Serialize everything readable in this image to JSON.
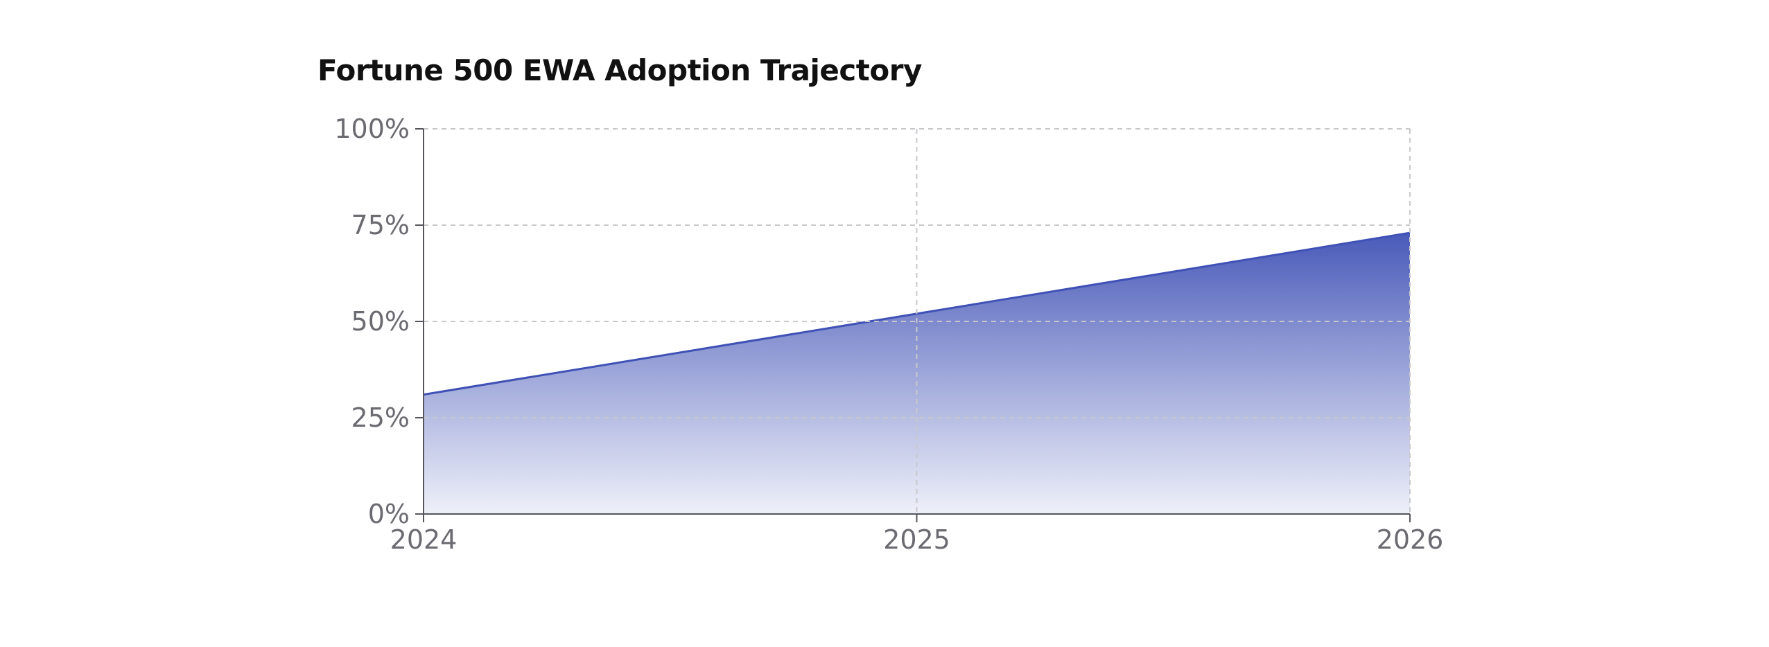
{
  "chart_data": {
    "type": "area",
    "title": "Fortune 500 EWA Adoption Trajectory",
    "xlabel": "",
    "ylabel": "",
    "x": [
      "2024",
      "2025",
      "2026"
    ],
    "series": [
      {
        "values": [
          31,
          52,
          73
        ]
      }
    ],
    "ylim": [
      0,
      100
    ],
    "y_ticks": [
      "0%",
      "25%",
      "50%",
      "75%",
      "100%"
    ],
    "y_tick_values": [
      0,
      25,
      50,
      75,
      100
    ],
    "grid": true,
    "legend": "none",
    "colors": {
      "line": "#3f51b5",
      "fill_top": "#3f51b5",
      "fill_bottom": "#eceef8",
      "grid": "#c8c8cc",
      "axis": "#55555c"
    }
  }
}
